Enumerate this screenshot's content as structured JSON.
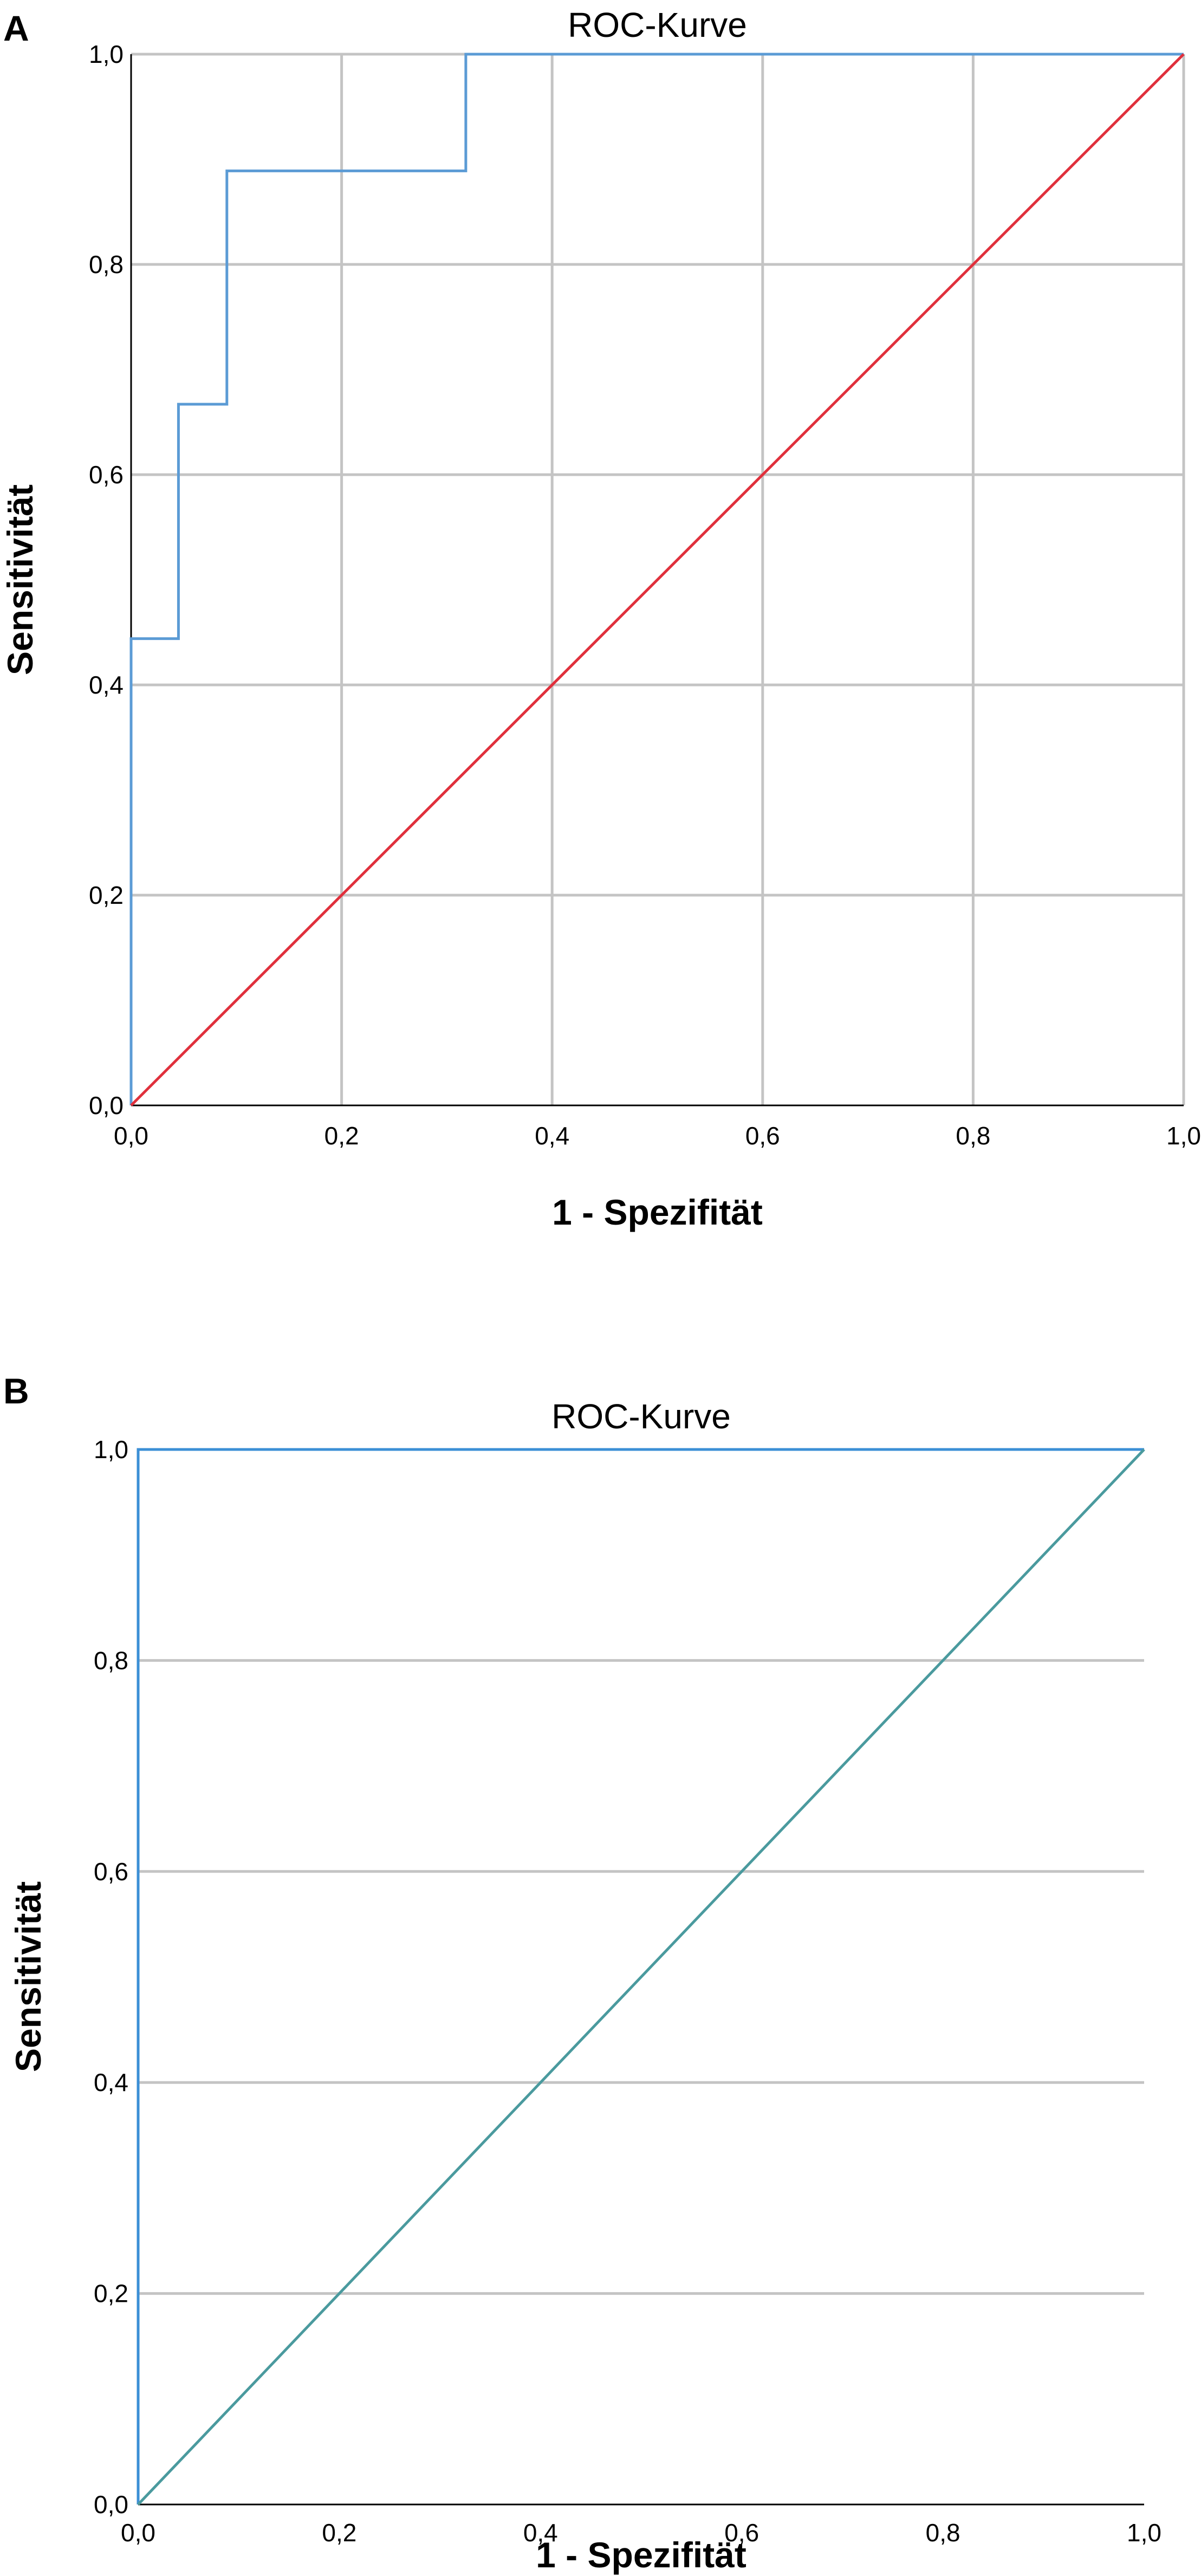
{
  "chart_data": [
    {
      "type": "line",
      "panel_label": "A",
      "title": "ROC-Kurve",
      "xlabel": "1 - Spezifität",
      "ylabel": "Sensitivität",
      "xlim": [
        0,
        1
      ],
      "ylim": [
        0,
        1
      ],
      "x_ticks": [
        "0,0",
        "0,2",
        "0,4",
        "0,6",
        "0,8",
        "1,0"
      ],
      "y_ticks": [
        "0,0",
        "0,2",
        "0,4",
        "0,6",
        "0,8",
        "1,0"
      ],
      "grid": {
        "vertical": true,
        "horizontal": true
      },
      "series": [
        {
          "color": "#5b9bd5",
          "x": [
            0,
            0,
            0.045,
            0.045,
            0.091,
            0.091,
            0.318,
            0.318,
            1.0
          ],
          "y": [
            0,
            0.444,
            0.444,
            0.667,
            0.667,
            0.889,
            0.889,
            1.0,
            1.0
          ]
        },
        {
          "color": "#e0303c",
          "x": [
            0,
            1
          ],
          "y": [
            0,
            1
          ]
        }
      ]
    },
    {
      "type": "line",
      "panel_label": "B",
      "title": "ROC-Kurve",
      "xlabel": "1 - Spezifität",
      "ylabel": "Sensitivität",
      "xlim": [
        0,
        1
      ],
      "ylim": [
        0,
        1
      ],
      "x_ticks": [
        "0,0",
        "0,2",
        "0,4",
        "0,6",
        "0,8",
        "1,0"
      ],
      "y_ticks": [
        "0,0",
        "0,2",
        "0,4",
        "0,6",
        "0,8",
        "1,0"
      ],
      "grid": {
        "vertical": false,
        "horizontal": true
      },
      "series": [
        {
          "color": "#3b8fd6",
          "x": [
            0,
            0,
            1
          ],
          "y": [
            0,
            1,
            1
          ]
        },
        {
          "color": "#4a9a9e",
          "x": [
            0,
            1
          ],
          "y": [
            0,
            1
          ]
        }
      ]
    }
  ]
}
